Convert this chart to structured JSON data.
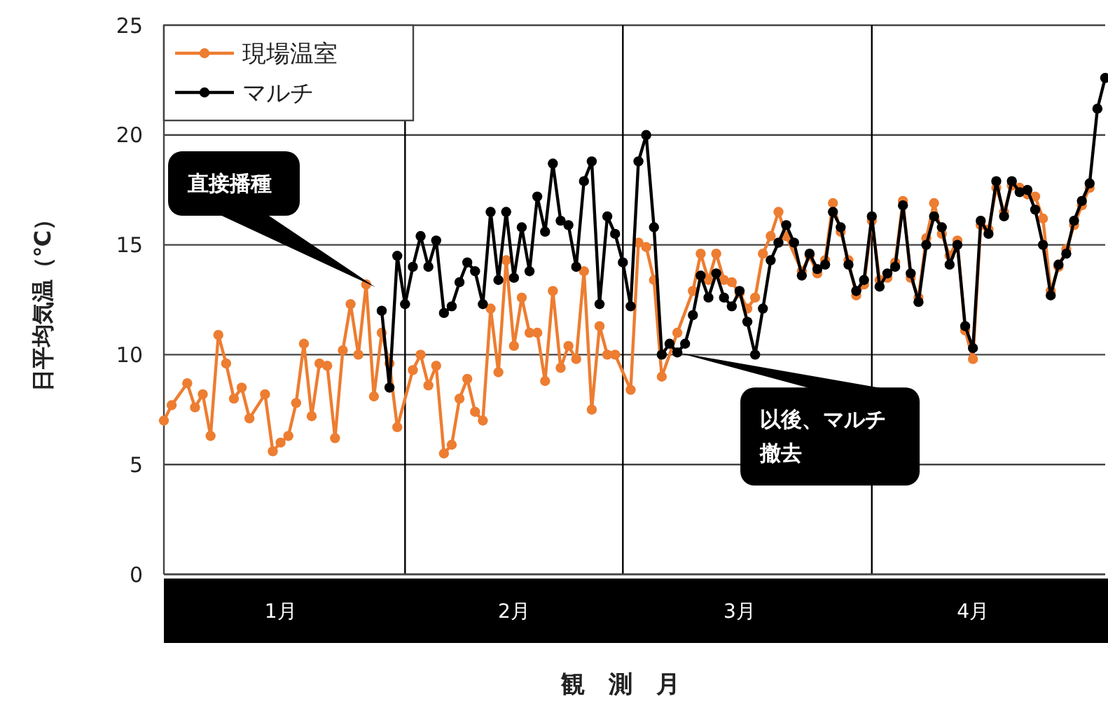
{
  "chart_data": {
    "type": "line",
    "xlabel": "観　測　月",
    "ylabel": "日平均気温（℃）",
    "xlim": [
      "--01-01",
      "--05-02"
    ],
    "xticks": [
      {
        "value": "--01-16",
        "label": "1月"
      },
      {
        "value": "--02-15",
        "label": "2月"
      },
      {
        "value": "--03-16",
        "label": "3月"
      },
      {
        "value": "--04-15",
        "label": "4月"
      }
    ],
    "ylim": [
      0,
      25
    ],
    "yticks": [
      0,
      5,
      10,
      15,
      20,
      25
    ],
    "grid": "y",
    "legend": "top left",
    "marker": "circle",
    "line_style": "solid",
    "series": [
      {
        "name": "現場温室",
        "color": "#ed7d31",
        "x": [
          "--01-01",
          "--01-02",
          "--01-04",
          "--01-05",
          "--01-06",
          "--01-07",
          "--01-08",
          "--01-09",
          "--01-10",
          "--01-11",
          "--01-12",
          "--01-14",
          "--01-15",
          "--01-16",
          "--01-17",
          "--01-18",
          "--01-19",
          "--01-20",
          "--01-21",
          "--01-22",
          "--01-23",
          "--01-24",
          "--01-25",
          "--01-26",
          "--01-27",
          "--01-28",
          "--01-29",
          "--01-30",
          "--01-31",
          "--02-02",
          "--02-03",
          "--02-04",
          "--02-05",
          "--02-06",
          "--02-07",
          "--02-08",
          "--02-09",
          "--02-10",
          "--02-11",
          "--02-12",
          "--02-13",
          "--02-14",
          "--02-15",
          "--02-16",
          "--02-17",
          "--02-18",
          "--02-19",
          "--02-20",
          "--02-21",
          "--02-22",
          "--02-23",
          "--02-24",
          "--02-25",
          "--02-26",
          "--02-27",
          "--02-28",
          "--03-02",
          "--03-03",
          "--03-04",
          "--03-05",
          "--03-06",
          "--03-08",
          "--03-10",
          "--03-11",
          "--03-12",
          "--03-13",
          "--03-14",
          "--03-15",
          "--03-16",
          "--03-17",
          "--03-18",
          "--03-19",
          "--03-20",
          "--03-21",
          "--03-22",
          "--03-24",
          "--03-25",
          "--03-26",
          "--03-27",
          "--03-28",
          "--03-29",
          "--03-30",
          "--03-31",
          "--04-01",
          "--04-02",
          "--04-03",
          "--04-04",
          "--04-05",
          "--04-06",
          "--04-07",
          "--04-08",
          "--04-09",
          "--04-10",
          "--04-11",
          "--04-12",
          "--04-13",
          "--04-14",
          "--04-15",
          "--04-16",
          "--04-17",
          "--04-18",
          "--04-19",
          "--04-20",
          "--04-21",
          "--04-22",
          "--04-23",
          "--04-24",
          "--04-25",
          "--04-26",
          "--04-27",
          "--04-28",
          "--04-29",
          "--04-30"
        ],
        "values": [
          7.0,
          7.7,
          8.7,
          7.6,
          8.2,
          6.3,
          10.9,
          9.6,
          8.0,
          8.5,
          7.1,
          8.2,
          5.6,
          6.0,
          6.3,
          7.8,
          10.5,
          7.2,
          9.6,
          9.5,
          6.2,
          10.2,
          12.3,
          10.0,
          13.2,
          8.1,
          11.0,
          9.6,
          6.7,
          9.3,
          10.0,
          8.6,
          9.5,
          5.5,
          5.9,
          8.0,
          8.9,
          7.4,
          7.0,
          12.1,
          9.2,
          14.3,
          10.4,
          12.6,
          11.0,
          11.0,
          8.8,
          12.9,
          9.4,
          10.4,
          9.8,
          13.8,
          7.5,
          11.3,
          10.0,
          10.0,
          8.4,
          15.1,
          14.9,
          13.4,
          9.0,
          11.0,
          12.9,
          14.6,
          13.4,
          14.6,
          13.4,
          13.3,
          12.8,
          12.1,
          12.6,
          14.6,
          15.4,
          16.5,
          15.4,
          13.8,
          14.5,
          13.7,
          14.3,
          16.9,
          15.6,
          14.3,
          12.7,
          13.2,
          16.1,
          13.4,
          13.5,
          14.2,
          17.0,
          13.5,
          12.6,
          15.3,
          16.9,
          15.5,
          14.5,
          15.2,
          11.1,
          9.8,
          15.9,
          15.7,
          17.6,
          16.5,
          17.7,
          17.6,
          17.3,
          17.2,
          16.2,
          12.9,
          14.0,
          14.8,
          15.9,
          16.8,
          17.6
        ]
      },
      {
        "name": "マルチ",
        "color": "#000000",
        "x": [
          "--01-29",
          "--01-30",
          "--01-31",
          "--02-01",
          "--02-02",
          "--02-03",
          "--02-04",
          "--02-05",
          "--02-06",
          "--02-07",
          "--02-08",
          "--02-09",
          "--02-10",
          "--02-11",
          "--02-12",
          "--02-13",
          "--02-14",
          "--02-15",
          "--02-16",
          "--02-17",
          "--02-18",
          "--02-19",
          "--02-20",
          "--02-21",
          "--02-22",
          "--02-23",
          "--02-24",
          "--02-25",
          "--02-26",
          "--02-27",
          "--02-28",
          "--03-01",
          "--03-02",
          "--03-03",
          "--03-04",
          "--03-05",
          "--03-06",
          "--03-07",
          "--03-08",
          "--03-09",
          "--03-10",
          "--03-11",
          "--03-12",
          "--03-13",
          "--03-14",
          "--03-15",
          "--03-16",
          "--03-17",
          "--03-18",
          "--03-19",
          "--03-20",
          "--03-21",
          "--03-22",
          "--03-23",
          "--03-24",
          "--03-25",
          "--03-26",
          "--03-27",
          "--03-28",
          "--03-29",
          "--03-30",
          "--03-31",
          "--04-01",
          "--04-02",
          "--04-03",
          "--04-04",
          "--04-05",
          "--04-06",
          "--04-07",
          "--04-08",
          "--04-09",
          "--04-10",
          "--04-11",
          "--04-12",
          "--04-13",
          "--04-14",
          "--04-15",
          "--04-16",
          "--04-17",
          "--04-18",
          "--04-19",
          "--04-20",
          "--04-21",
          "--04-22",
          "--04-23",
          "--04-24",
          "--04-25",
          "--04-26",
          "--04-27",
          "--04-28",
          "--04-29",
          "--04-30",
          "--05-01",
          "--05-02"
        ],
        "values": [
          12.0,
          8.5,
          14.5,
          12.3,
          14.0,
          15.4,
          14.0,
          15.2,
          11.9,
          12.2,
          13.3,
          14.2,
          13.8,
          12.3,
          16.5,
          13.4,
          16.5,
          13.5,
          15.8,
          13.8,
          17.2,
          15.6,
          18.7,
          16.1,
          15.9,
          14.0,
          17.9,
          18.8,
          12.3,
          16.3,
          15.5,
          14.2,
          12.2,
          18.8,
          20.0,
          15.8,
          10.0,
          10.5,
          10.1,
          10.5,
          11.8,
          13.6,
          12.6,
          13.7,
          12.6,
          12.2,
          12.9,
          11.5,
          10.0,
          12.1,
          14.3,
          15.1,
          15.9,
          15.1,
          13.6,
          14.6,
          13.9,
          14.1,
          16.5,
          15.8,
          14.1,
          12.9,
          13.4,
          16.3,
          13.1,
          13.7,
          14.0,
          16.8,
          13.7,
          12.4,
          15.0,
          16.3,
          15.8,
          14.1,
          15.0,
          11.3,
          10.3,
          16.1,
          15.5,
          17.9,
          16.3,
          17.9,
          17.4,
          17.5,
          16.6,
          15.0,
          12.7,
          14.1,
          14.6,
          16.1,
          17.0,
          17.8,
          21.2,
          22.6
        ]
      }
    ],
    "ref_lines": [
      {
        "axis": "x",
        "value": "--02-01",
        "color": "#000000"
      },
      {
        "axis": "x",
        "value": "--03-01",
        "color": "#000000"
      },
      {
        "axis": "x",
        "value": "--04-02",
        "color": "#000000"
      }
    ],
    "annotations": [
      "直接播種",
      {
        "text": "以後、マルチ撤去",
        "x": "--03-08",
        "y": 10.1
      }
    ]
  }
}
